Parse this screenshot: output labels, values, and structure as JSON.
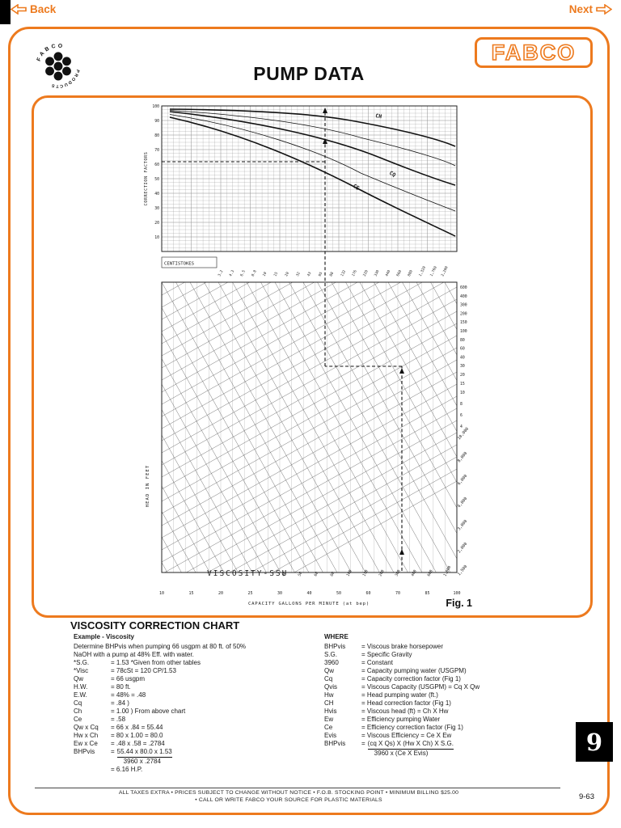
{
  "nav": {
    "back": "Back",
    "next": "Next"
  },
  "header": {
    "title": "PUMP DATA",
    "brand": "FABCO",
    "logo_top": "FABCO",
    "logo_bottom": "PRODUCTS"
  },
  "figure": {
    "label": "Fig. 1",
    "correction_axis": "CORRECTION FACTORS",
    "correction_ticks": [
      "100",
      "90",
      "80",
      "70",
      "60",
      "50",
      "40",
      "30",
      "20",
      "10"
    ],
    "curves": [
      "CH",
      "CQ",
      "CE"
    ],
    "centistokes_title": "CENTISTOKES",
    "centistokes_values": [
      "3.2",
      "4.3",
      "6.5",
      "8.8",
      "10",
      "15",
      "20",
      "32",
      "43",
      "65",
      "88",
      "132",
      "176",
      "220",
      "330",
      "440",
      "660",
      "880",
      "1,320",
      "1,760",
      "2,200"
    ],
    "head_axis": "HEAD IN FEET",
    "head_ticks_right": [
      "600",
      "400",
      "300",
      "200",
      "150",
      "100",
      "80",
      "60",
      "40",
      "30",
      "20",
      "15",
      "10",
      "8",
      "6",
      "4"
    ],
    "ssu_right": [
      "10,000",
      "8,000",
      "6,000",
      "4,000",
      "3,000",
      "2,000",
      "1,500"
    ],
    "viscosity_label": "VISCOSITY-SSU",
    "ssu_bottom": [
      "40",
      "50",
      "60",
      "80",
      "100",
      "150",
      "200",
      "300",
      "400",
      "600",
      "1,000"
    ],
    "x_axis": "CAPACITY GALLONS PER MINUTE (at bep)",
    "x_ticks": [
      "10",
      "15",
      "20",
      "25",
      "30",
      "40",
      "50",
      "60",
      "70",
      "85",
      "100"
    ]
  },
  "section": {
    "heading": "VISCOSITY CORRECTION CHART",
    "example": {
      "title": "Example - Viscosity",
      "intro_1": "Determine BHPvis when pumping 66 usgpm at 80 ft. of 50%",
      "intro_2": "NaOH with a pump at 48% Eff. with water.",
      "rows": [
        {
          "label": "*S.G.",
          "value": "= 1.53 *Given from other tables"
        },
        {
          "label": "*Visc",
          "value": "= 78cSt = 120 CP/1.53"
        },
        {
          "label": "Qw",
          "value": "= 66 usgpm"
        },
        {
          "label": "H.W.",
          "value": "= 80 ft."
        },
        {
          "label": "E.W.",
          "value": "= 48% = .48"
        },
        {
          "label": "Cq",
          "value": "= .84 )"
        },
        {
          "label": "Ch",
          "value": "= 1.00 ) From above chart"
        },
        {
          "label": "Ce",
          "value": "= .58"
        },
        {
          "label": "Qw x Cq",
          "value": "= 66 x .84 = 55.44"
        },
        {
          "label": "Hw x Ch",
          "value": "= 80 x 1.00 = 80.0"
        },
        {
          "label": "Ew x Ce",
          "value": "= .48 x .58 = .2784"
        }
      ],
      "fraction": {
        "label": "BHPvis",
        "eq": "=",
        "numerator": "55.44 x 80.0 x 1.53",
        "denominator": "3960 x .2784",
        "result": "= 6.16 H.P."
      }
    },
    "where": {
      "title": "WHERE",
      "rows": [
        {
          "term": "BHPvis",
          "def": "= Viscous brake horsepower"
        },
        {
          "term": "S.G.",
          "def": "= Specific Gravity"
        },
        {
          "term": "3960",
          "def": "= Constant"
        },
        {
          "term": "Qw",
          "def": "= Capacity pumping water (USGPM)"
        },
        {
          "term": "Cq",
          "def": "= Capacity correction factor (Fig 1)"
        },
        {
          "term": "Qvis",
          "def": "= Viscous Capacity (USGPM) = Cq X Qw"
        },
        {
          "term": "Hw",
          "def": "= Head pumping water (ft.)"
        },
        {
          "term": "CH",
          "def": "= Head correction factor (Fig 1)"
        },
        {
          "term": "Hvis",
          "def": "= Viscous head (ft) = Ch X Hw"
        },
        {
          "term": "Ew",
          "def": "= Efficiency pumping Water"
        },
        {
          "term": "Ce",
          "def": "= Efficiency correction factor (Fig 1)"
        },
        {
          "term": "Evis",
          "def": "= Viscous Efficiency = Ce X Ew"
        }
      ],
      "fraction": {
        "term": "BHPvis",
        "eq": "=",
        "numerator": "(cq X Qs) X (Hw X Ch) X S.G.",
        "denominator": "3960 x (Ce X Evis)"
      }
    }
  },
  "footer": {
    "line1": "ALL TAXES EXTRA • PRICES SUBJECT TO CHANGE WITHOUT NOTICE • F.O.B. STOCKING POINT • MINIMUM BILLING $25.00",
    "line2": "• CALL OR WRITE FABCO YOUR SOURCE FOR PLASTIC MATERIALS",
    "page_number": "9-63",
    "tab": "9"
  },
  "colors": {
    "accent": "#ED7A1E",
    "ink": "#1a1a1a"
  }
}
